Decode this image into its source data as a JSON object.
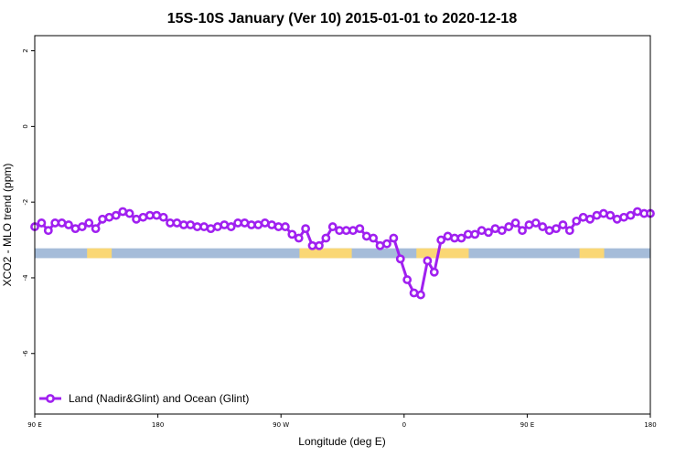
{
  "chart_data": {
    "type": "line",
    "title": "15S-10S January (Ver 10)   2015-01-01 to 2020-12-18",
    "xlabel": "Longitude (deg E)",
    "ylabel": "XCO2 - MLO trend (ppm)",
    "xlim": [
      0,
      100
    ],
    "ylim": [
      -7.6,
      2.4
    ],
    "x_ticks": [
      {
        "pos": 0,
        "label": "90 E"
      },
      {
        "pos": 20,
        "label": "180"
      },
      {
        "pos": 40,
        "label": "90 W"
      },
      {
        "pos": 60,
        "label": "0"
      },
      {
        "pos": 80,
        "label": "90 E"
      },
      {
        "pos": 100,
        "label": "180"
      }
    ],
    "y_ticks": [
      {
        "value": 2,
        "label": "2"
      },
      {
        "value": 0,
        "label": "0"
      },
      {
        "value": -2,
        "label": "-2"
      },
      {
        "value": -4,
        "label": "-4"
      },
      {
        "value": -6,
        "label": "-6"
      }
    ],
    "surface_band": {
      "y_top": -3.22,
      "y_bottom": -3.48,
      "ocean_color": "#a5bcd9",
      "land_color": "#fad775",
      "land_segments": [
        [
          8.5,
          12.5
        ],
        [
          43,
          51.5
        ],
        [
          62,
          70.5
        ],
        [
          88.5,
          92.5
        ]
      ]
    },
    "series": [
      {
        "name": "Land (Nadir&Glint) and Ocean (Glint)",
        "color": "#a020f0",
        "x": [
          0,
          1.1,
          2.2,
          3.3,
          4.4,
          5.5,
          6.6,
          7.7,
          8.8,
          9.9,
          11,
          12.1,
          13.2,
          14.3,
          15.4,
          16.5,
          17.6,
          18.7,
          19.8,
          20.9,
          22,
          23.1,
          24.2,
          25.3,
          26.4,
          27.5,
          28.6,
          29.7,
          30.8,
          31.9,
          33,
          34.1,
          35.2,
          36.3,
          37.4,
          38.5,
          39.6,
          40.7,
          41.8,
          42.9,
          44,
          45.1,
          46.2,
          47.3,
          48.4,
          49.5,
          50.6,
          51.7,
          52.8,
          53.9,
          55,
          56.1,
          57.2,
          58.3,
          59.4,
          60.5,
          61.6,
          62.7,
          63.8,
          64.9,
          66,
          67.1,
          68.2,
          69.3,
          70.4,
          71.5,
          72.6,
          73.7,
          74.8,
          75.9,
          77,
          78.1,
          79.2,
          80.3,
          81.4,
          82.5,
          83.6,
          84.7,
          85.8,
          86.9,
          88,
          89.1,
          90.2,
          91.3,
          92.4,
          93.5,
          94.6,
          95.7,
          96.8,
          97.9,
          99,
          100
        ],
        "y": [
          -2.65,
          -2.55,
          -2.75,
          -2.55,
          -2.55,
          -2.6,
          -2.7,
          -2.65,
          -2.55,
          -2.7,
          -2.45,
          -2.4,
          -2.35,
          -2.25,
          -2.3,
          -2.45,
          -2.4,
          -2.35,
          -2.35,
          -2.4,
          -2.55,
          -2.55,
          -2.6,
          -2.6,
          -2.65,
          -2.65,
          -2.7,
          -2.65,
          -2.6,
          -2.65,
          -2.55,
          -2.55,
          -2.6,
          -2.6,
          -2.55,
          -2.6,
          -2.65,
          -2.65,
          -2.85,
          -2.95,
          -2.7,
          -3.15,
          -3.15,
          -2.95,
          -2.65,
          -2.75,
          -2.75,
          -2.75,
          -2.7,
          -2.9,
          -2.95,
          -3.15,
          -3.1,
          -2.95,
          -3.5,
          -4.05,
          -4.4,
          -4.45,
          -3.55,
          -3.85,
          -3.0,
          -2.9,
          -2.95,
          -2.95,
          -2.85,
          -2.85,
          -2.75,
          -2.8,
          -2.7,
          -2.75,
          -2.65,
          -2.55,
          -2.75,
          -2.6,
          -2.55,
          -2.65,
          -2.75,
          -2.7,
          -2.6,
          -2.75,
          -2.5,
          -2.4,
          -2.45,
          -2.35,
          -2.3,
          -2.35,
          -2.45,
          -2.4,
          -2.35,
          -2.25,
          -2.3,
          -2.3
        ]
      }
    ],
    "legend": {
      "position": "bottom-left",
      "entries": [
        "Land (Nadir&Glint) and Ocean (Glint)"
      ]
    }
  }
}
